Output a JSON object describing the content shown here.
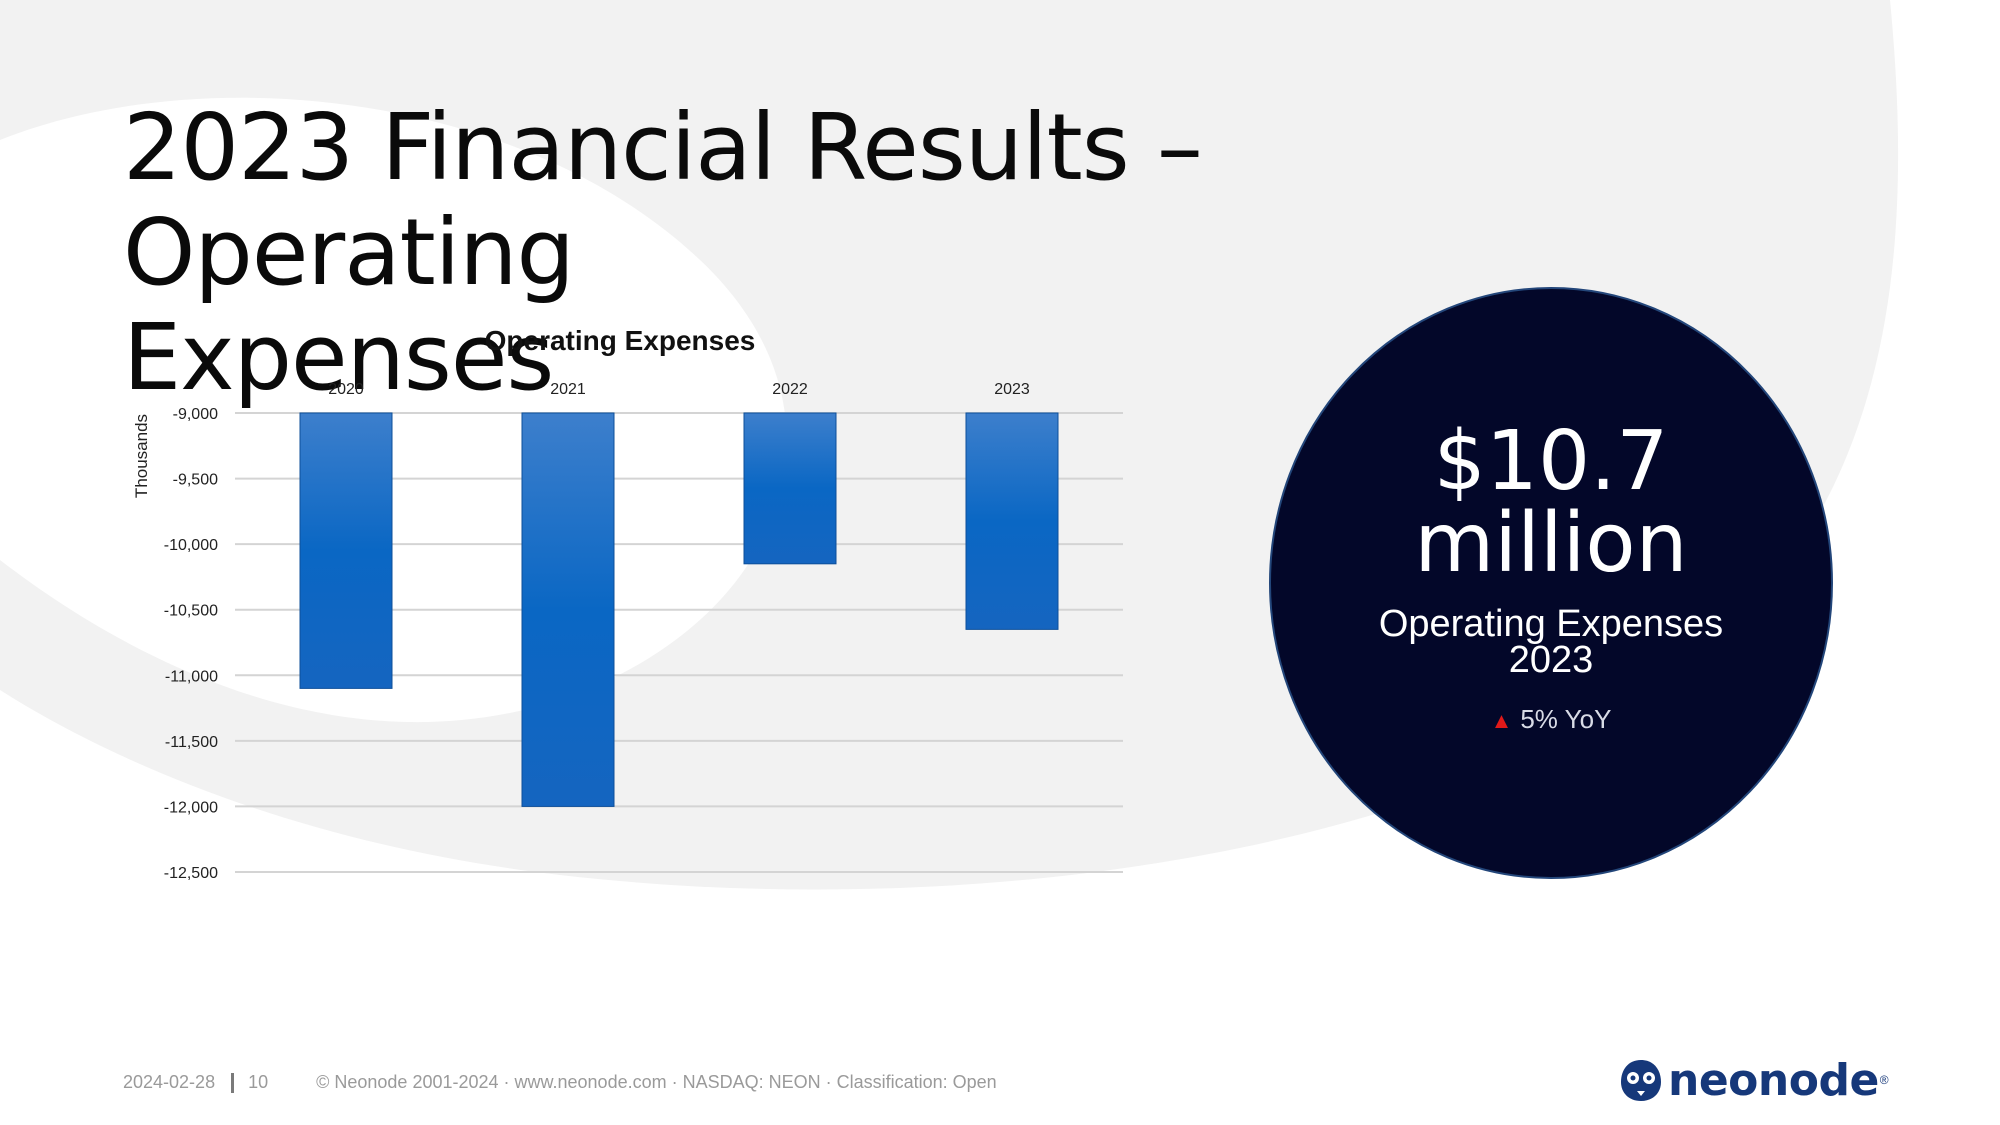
{
  "slide": {
    "title_line1": "2023 Financial Results – Operating",
    "title_line2": "Expenses"
  },
  "chart_data": {
    "type": "bar",
    "title": "Operating Expenses",
    "categories": [
      "2020",
      "2021",
      "2022",
      "2023"
    ],
    "values": [
      -11100,
      -12000,
      -10150,
      -10650
    ],
    "ylabel": "Thousands",
    "ylim": [
      -12500,
      -9000
    ],
    "yticks": [
      -9000,
      -9500,
      -10000,
      -10500,
      -11000,
      -11500,
      -12000,
      -12500
    ],
    "ytick_labels": [
      "-9,000",
      "-9,500",
      "-10,000",
      "-10,500",
      "-11,000",
      "-11,500",
      "-12,000",
      "-12,500"
    ],
    "category_axis_position": "top",
    "grid": true,
    "bar_color": "#1565c0"
  },
  "kpi": {
    "value_line1": "$10.7",
    "value_line2": "million",
    "label_line1": "Operating Expenses",
    "label_line2": "2023",
    "yoy_text": "5% YoY",
    "yoy_icon": "up-triangle-icon",
    "bg_color": "#030729"
  },
  "footer": {
    "date": "2024-02-28",
    "page": "10",
    "copyright": "© Neonode 2001-2024 · www.neonode.com · NASDAQ: NEON · Classification: Open"
  },
  "logo": {
    "text": "neonode",
    "mark": "®",
    "brand_color": "#16387a"
  }
}
